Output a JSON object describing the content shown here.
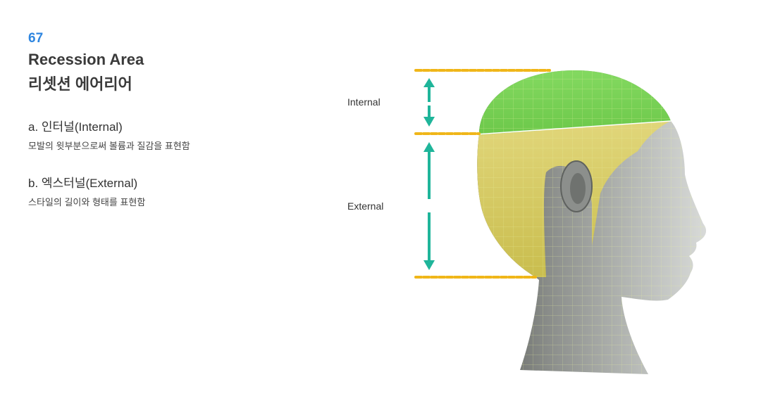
{
  "header": {
    "number": "67",
    "title_en": "Recession Area",
    "title_ko": "리셋션 에어리어"
  },
  "sections": [
    {
      "title": "a. 인터널(Internal)",
      "description": "모발의 윗부분으로써 볼륨과 질감을 표현함"
    },
    {
      "title": "b. 엑스터널(External)",
      "description": "스타일의 길이와 형태를 표현함"
    }
  ],
  "diagram": {
    "labels": {
      "internal": "Internal",
      "external": "External"
    },
    "colors": {
      "internal_zone": "#7fd45a",
      "external_zone": "#d9cf6a",
      "guide_line": "#f0b619",
      "arrow": "#1fb59a",
      "head": "#8a8d8a"
    }
  }
}
